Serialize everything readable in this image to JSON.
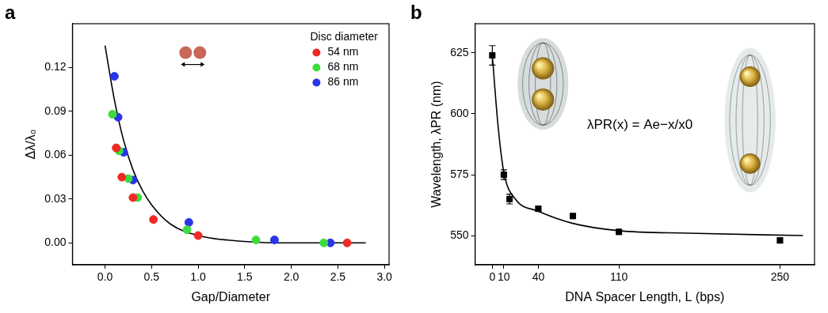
{
  "chart_data": [
    {
      "panel": "a",
      "type": "scatter",
      "x_label": "Gap/Diameter",
      "y_label": "Δλ/λ₀",
      "legend_title": "Disc diameter",
      "legend": "upper right",
      "grid": false,
      "xlim": [
        -0.35,
        3.05
      ],
      "xticks": [
        {
          "value": 0,
          "label": "0.0"
        },
        {
          "value": 0.5,
          "label": "0.5"
        },
        {
          "value": 1,
          "label": "1.0"
        },
        {
          "value": 1.5,
          "label": "1.5"
        },
        {
          "value": 2,
          "label": "2.0"
        },
        {
          "value": 2.5,
          "label": "2.5"
        },
        {
          "value": 3,
          "label": "3.0"
        }
      ],
      "ylim": [
        -0.015,
        0.15
      ],
      "yticks": [
        {
          "value": 0,
          "label": "0.00"
        },
        {
          "value": 0.03,
          "label": "0.03"
        },
        {
          "value": 0.06,
          "label": "0.06"
        },
        {
          "value": 0.09,
          "label": "0.09"
        },
        {
          "value": 0.12,
          "label": "0.12"
        }
      ],
      "series": [
        {
          "type": "line",
          "color": "#000000",
          "line_style": "solid",
          "x": [
            0,
            0.1,
            0.2,
            0.3,
            0.4,
            0.5,
            0.7,
            1.0,
            1.5,
            2.0,
            2.8
          ],
          "values": [
            0.135,
            0.098,
            0.07,
            0.05,
            0.036,
            0.026,
            0.013,
            0.005,
            0.001,
            0.0,
            0.0
          ]
        },
        {
          "name": "54 nm",
          "type": "scatter",
          "marker": "circle",
          "color": "#ee2a24",
          "x": [
            0.12,
            0.18,
            0.3,
            0.52,
            1.0,
            2.6
          ],
          "values": [
            0.065,
            0.045,
            0.031,
            0.016,
            0.005,
            0.0
          ]
        },
        {
          "name": "68 nm",
          "type": "scatter",
          "marker": "circle",
          "color": "#3ddc3d",
          "x": [
            0.08,
            0.15,
            0.25,
            0.35,
            0.88,
            1.62,
            2.35
          ],
          "values": [
            0.088,
            0.063,
            0.044,
            0.031,
            0.009,
            0.002,
            0.0
          ]
        },
        {
          "name": "86 nm",
          "type": "scatter",
          "marker": "circle",
          "color": "#2b35e8",
          "x": [
            0.1,
            0.14,
            0.2,
            0.3,
            0.9,
            1.82,
            2.42
          ],
          "values": [
            0.114,
            0.086,
            0.062,
            0.043,
            0.014,
            0.002,
            0.0
          ]
        }
      ]
    },
    {
      "panel": "b",
      "type": "scatter",
      "x_label": "DNA Spacer Length, L (bps)",
      "y_label": "Wavelength, λPR (nm)",
      "annotation": "λPR(x) = Ae−x/x0",
      "grid": false,
      "xlim": [
        -15,
        280
      ],
      "xticks": [
        0,
        10,
        40,
        110,
        250
      ],
      "ylim": [
        538,
        637
      ],
      "yticks": [
        550,
        575,
        600,
        625
      ],
      "series": [
        {
          "type": "line",
          "color": "#000000",
          "line_style": "solid",
          "x": [
            0,
            5,
            10,
            20,
            40,
            70,
            110,
            170,
            270
          ],
          "values": [
            624,
            595,
            576,
            565,
            560,
            555,
            552,
            551,
            550
          ]
        },
        {
          "type": "scatter",
          "marker": "square",
          "color": "#000000",
          "x": [
            0,
            10,
            15,
            40,
            70,
            110,
            250
          ],
          "values": [
            624,
            575,
            565,
            561,
            558,
            551.5,
            548
          ],
          "errors": [
            4,
            2,
            2,
            1,
            1,
            1,
            1
          ]
        }
      ]
    }
  ]
}
